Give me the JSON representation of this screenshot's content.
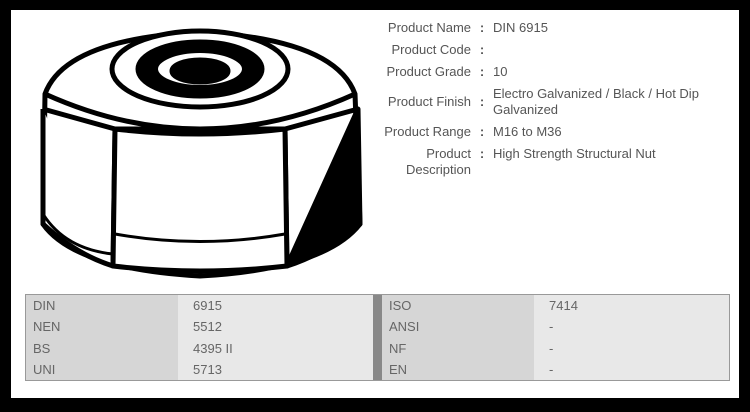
{
  "product": {
    "details": [
      {
        "label": "Product Name",
        "value": "DIN 6915"
      },
      {
        "label": "Product Code",
        "value": ""
      },
      {
        "label": "Product Grade",
        "value": "10"
      },
      {
        "label": "Product Finish",
        "value": "Electro Galvanized / Black / Hot Dip Galvanized"
      },
      {
        "label": "Product Range",
        "value": "M16 to M36"
      },
      {
        "label": "Product Description",
        "value": "High Strength Structural Nut"
      }
    ],
    "colon": ":"
  },
  "standards": {
    "left": [
      {
        "key": "DIN",
        "value": "6915"
      },
      {
        "key": "NEN",
        "value": "5512"
      },
      {
        "key": "BS",
        "value": "4395 II"
      },
      {
        "key": "UNI",
        "value": "5713"
      }
    ],
    "right": [
      {
        "key": "ISO",
        "value": "7414"
      },
      {
        "key": "ANSI",
        "value": "-"
      },
      {
        "key": "NF",
        "value": "-"
      },
      {
        "key": "EN",
        "value": "-"
      }
    ]
  }
}
